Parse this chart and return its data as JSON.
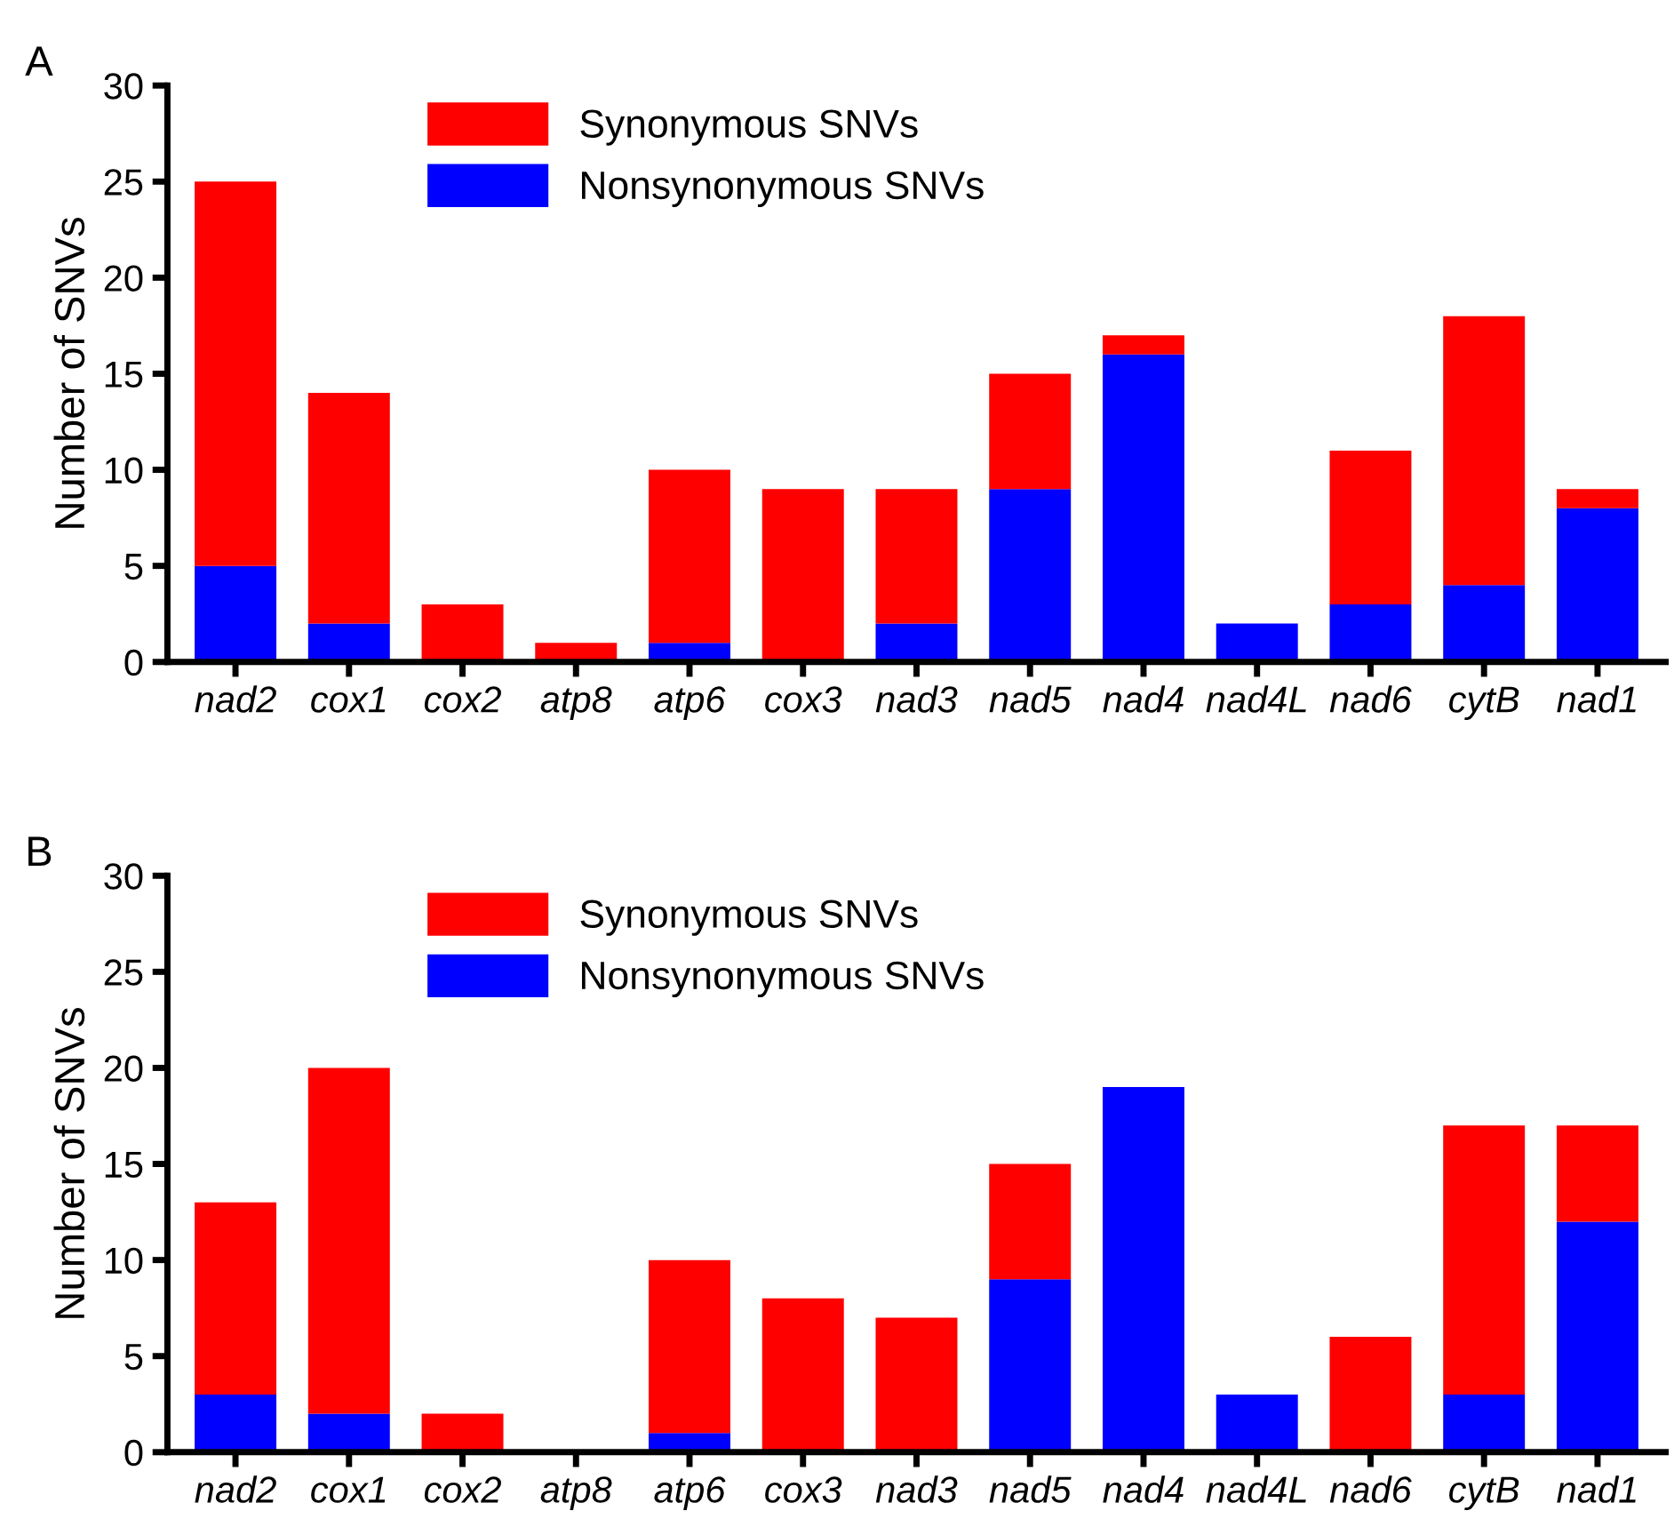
{
  "chart_data": [
    {
      "type": "bar",
      "title": "A",
      "ylabel": "Number of SNVs",
      "stacked": true,
      "legend": "top",
      "grid": false,
      "ylim": [
        0,
        30
      ],
      "yticks": [
        0,
        5,
        10,
        15,
        20,
        25,
        30
      ],
      "categories": [
        "nad2",
        "cox1",
        "cox2",
        "atp8",
        "atp6",
        "cox3",
        "nad3",
        "nad5",
        "nad4",
        "nad4L",
        "nad6",
        "cytB",
        "nad1"
      ],
      "series": [
        {
          "name": "Nonsynonymous SNVs",
          "color": "#0000ff",
          "values": [
            5,
            2,
            0,
            0,
            1,
            0,
            2,
            9,
            16,
            2,
            3,
            4,
            8
          ]
        },
        {
          "name": "Synonymous SNVs",
          "color": "#ff0000",
          "values": [
            20,
            12,
            3,
            1,
            9,
            9,
            7,
            6,
            1,
            0,
            8,
            14,
            1
          ]
        }
      ]
    },
    {
      "type": "bar",
      "title": "B",
      "ylabel": "Number of SNVs",
      "stacked": true,
      "legend": "top",
      "grid": false,
      "ylim": [
        0,
        30
      ],
      "yticks": [
        0,
        5,
        10,
        15,
        20,
        25,
        30
      ],
      "categories": [
        "nad2",
        "cox1",
        "cox2",
        "atp8",
        "atp6",
        "cox3",
        "nad3",
        "nad5",
        "nad4",
        "nad4L",
        "nad6",
        "cytB",
        "nad1"
      ],
      "series": [
        {
          "name": "Nonsynonymous SNVs",
          "color": "#0000ff",
          "values": [
            3,
            2,
            0,
            0,
            1,
            0,
            0,
            9,
            19,
            3,
            0,
            3,
            12
          ]
        },
        {
          "name": "Synonymous SNVs",
          "color": "#ff0000",
          "values": [
            10,
            18,
            2,
            0,
            9,
            8,
            7,
            6,
            0,
            0,
            6,
            14,
            5
          ]
        }
      ]
    }
  ]
}
